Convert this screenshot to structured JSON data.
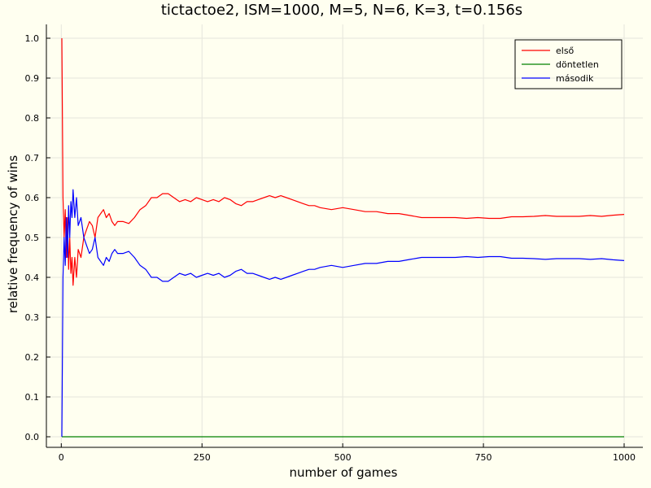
{
  "chart_data": {
    "type": "line",
    "title": "tictactoe2, ISM=1000, M=5, N=6, K=3, t=0.156s",
    "xlabel": "number of games",
    "ylabel": "relative frequency of wins",
    "xlim": [
      1,
      1000
    ],
    "ylim": [
      0.0,
      1.0
    ],
    "xticks": [
      0,
      250,
      500,
      750,
      1000
    ],
    "yticks": [
      0.0,
      0.1,
      0.2,
      0.3,
      0.4,
      0.5,
      0.6,
      0.7,
      0.8,
      0.9,
      1.0
    ],
    "grid": true,
    "legend_position": "top-right",
    "series": [
      {
        "name": "első",
        "color": "#ff0000",
        "x": [
          1,
          3,
          5,
          7,
          9,
          11,
          13,
          15,
          17,
          19,
          21,
          24,
          27,
          30,
          35,
          40,
          45,
          50,
          55,
          60,
          65,
          70,
          75,
          80,
          85,
          90,
          95,
          100,
          110,
          120,
          130,
          140,
          150,
          160,
          170,
          180,
          190,
          200,
          210,
          220,
          230,
          240,
          250,
          260,
          270,
          280,
          290,
          300,
          310,
          320,
          330,
          340,
          350,
          360,
          370,
          380,
          390,
          400,
          410,
          420,
          430,
          440,
          450,
          460,
          480,
          500,
          520,
          540,
          560,
          580,
          600,
          620,
          640,
          660,
          680,
          700,
          720,
          740,
          760,
          780,
          800,
          820,
          840,
          860,
          880,
          900,
          920,
          940,
          960,
          980,
          1000
        ],
        "y": [
          1.0,
          0.6,
          0.5,
          0.57,
          0.45,
          0.55,
          0.42,
          0.5,
          0.41,
          0.45,
          0.38,
          0.45,
          0.4,
          0.47,
          0.45,
          0.5,
          0.52,
          0.54,
          0.53,
          0.5,
          0.55,
          0.56,
          0.57,
          0.55,
          0.56,
          0.54,
          0.53,
          0.54,
          0.54,
          0.535,
          0.55,
          0.57,
          0.58,
          0.6,
          0.6,
          0.61,
          0.61,
          0.6,
          0.59,
          0.595,
          0.59,
          0.6,
          0.595,
          0.59,
          0.595,
          0.59,
          0.6,
          0.595,
          0.585,
          0.58,
          0.59,
          0.59,
          0.595,
          0.6,
          0.605,
          0.6,
          0.605,
          0.6,
          0.595,
          0.59,
          0.585,
          0.58,
          0.58,
          0.575,
          0.57,
          0.575,
          0.57,
          0.565,
          0.565,
          0.56,
          0.56,
          0.555,
          0.55,
          0.55,
          0.55,
          0.55,
          0.548,
          0.55,
          0.548,
          0.548,
          0.552,
          0.552,
          0.553,
          0.555,
          0.553,
          0.553,
          0.553,
          0.555,
          0.553,
          0.556,
          0.558
        ]
      },
      {
        "name": "döntetlen",
        "color": "#008000",
        "x": [
          1,
          1000
        ],
        "y": [
          0.0,
          0.0
        ]
      },
      {
        "name": "második",
        "color": "#0000ff",
        "x": [
          1,
          3,
          5,
          7,
          9,
          11,
          13,
          15,
          17,
          19,
          21,
          24,
          27,
          30,
          35,
          40,
          45,
          50,
          55,
          60,
          65,
          70,
          75,
          80,
          85,
          90,
          95,
          100,
          110,
          120,
          130,
          140,
          150,
          160,
          170,
          180,
          190,
          200,
          210,
          220,
          230,
          240,
          250,
          260,
          270,
          280,
          290,
          300,
          310,
          320,
          330,
          340,
          350,
          360,
          370,
          380,
          390,
          400,
          410,
          420,
          430,
          440,
          450,
          460,
          480,
          500,
          520,
          540,
          560,
          580,
          600,
          620,
          640,
          660,
          680,
          700,
          720,
          740,
          760,
          780,
          800,
          820,
          840,
          860,
          880,
          900,
          920,
          940,
          960,
          980,
          1000
        ],
        "y": [
          0.0,
          0.4,
          0.5,
          0.43,
          0.55,
          0.45,
          0.58,
          0.5,
          0.59,
          0.55,
          0.62,
          0.55,
          0.6,
          0.53,
          0.55,
          0.5,
          0.48,
          0.46,
          0.47,
          0.5,
          0.45,
          0.44,
          0.43,
          0.45,
          0.44,
          0.46,
          0.47,
          0.46,
          0.46,
          0.465,
          0.45,
          0.43,
          0.42,
          0.4,
          0.4,
          0.39,
          0.39,
          0.4,
          0.41,
          0.405,
          0.41,
          0.4,
          0.405,
          0.41,
          0.405,
          0.41,
          0.4,
          0.405,
          0.415,
          0.42,
          0.41,
          0.41,
          0.405,
          0.4,
          0.395,
          0.4,
          0.395,
          0.4,
          0.405,
          0.41,
          0.415,
          0.42,
          0.42,
          0.425,
          0.43,
          0.425,
          0.43,
          0.435,
          0.435,
          0.44,
          0.44,
          0.445,
          0.45,
          0.45,
          0.45,
          0.45,
          0.452,
          0.45,
          0.452,
          0.452,
          0.448,
          0.448,
          0.447,
          0.445,
          0.447,
          0.447,
          0.447,
          0.445,
          0.447,
          0.444,
          0.442
        ]
      }
    ]
  }
}
